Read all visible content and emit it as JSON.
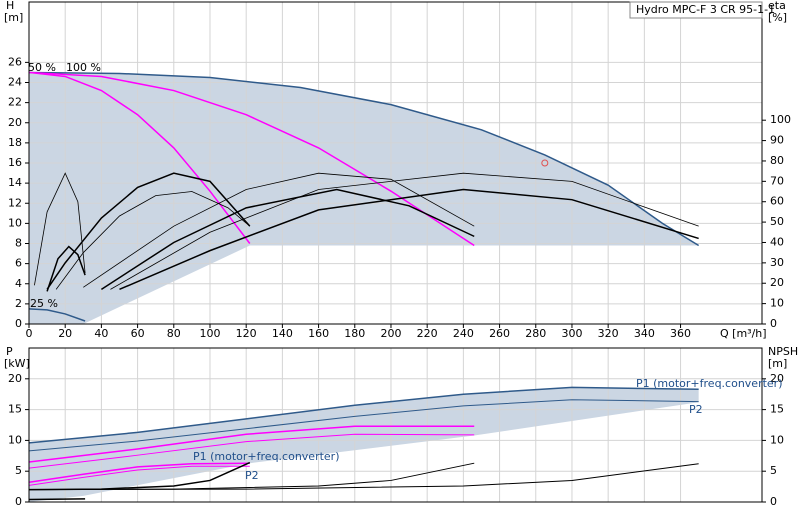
{
  "chart_data": [
    {
      "type": "line",
      "title": "Hydro MPC-F 3 CR 95-1-1",
      "ylabel": "H",
      "ylabel_unit": "[m]",
      "y2label": "eta",
      "y2label_unit": "[%]",
      "xlabel": "Q [m³/h]",
      "xlim": [
        0,
        405
      ],
      "xticks": [
        0,
        20,
        40,
        60,
        80,
        100,
        120,
        140,
        160,
        180,
        200,
        220,
        240,
        260,
        280,
        300,
        320,
        340,
        360
      ],
      "ylim": [
        0,
        32
      ],
      "yticks": [
        0,
        2,
        4,
        6,
        8,
        10,
        12,
        14,
        16,
        18,
        20,
        22,
        24,
        26
      ],
      "y2lim": [
        0,
        158
      ],
      "y2ticks": [
        0,
        10,
        20,
        30,
        40,
        50,
        60,
        70,
        80,
        90,
        100
      ],
      "grid": true,
      "annotations": [
        "50 %",
        "100 %",
        "25 %"
      ],
      "areas": [
        {
          "color": "#cbd6e3",
          "x": [
            0,
            50,
            100,
            150,
            200,
            250,
            285,
            320,
            350,
            370,
            122,
            30,
            0
          ],
          "values": [
            25,
            24.9,
            24.5,
            23.5,
            21.8,
            19.3,
            16.8,
            13.8,
            10,
            7.8,
            7.8,
            0,
            0
          ]
        }
      ],
      "duty_point": {
        "x": 285,
        "y": 16,
        "color": "#e05050"
      },
      "series": [
        {
          "color": "#2f5a8a",
          "line_width": 1.5,
          "x": [
            0,
            50,
            100,
            150,
            200,
            250,
            285,
            320,
            350,
            370
          ],
          "values": [
            25,
            24.9,
            24.5,
            23.5,
            21.8,
            19.3,
            16.8,
            13.8,
            10,
            7.8
          ]
        },
        {
          "color": "#ff00ff",
          "line_width": 1.5,
          "x": [
            0,
            20,
            40,
            60,
            80,
            100,
            122
          ],
          "values": [
            25,
            24.6,
            23.2,
            20.8,
            17.5,
            13.2,
            8
          ]
        },
        {
          "color": "#ff00ff",
          "line_width": 1.5,
          "x": [
            0,
            40,
            80,
            120,
            160,
            200,
            246
          ],
          "values": [
            25,
            24.6,
            23.2,
            20.8,
            17.5,
            13.2,
            7.8
          ]
        },
        {
          "color": "#000",
          "line_width": 1.5,
          "axis": "y2",
          "x": [
            10,
            20,
            40,
            60,
            80,
            100,
            122
          ],
          "values": [
            17,
            30,
            52,
            67,
            74,
            70,
            48
          ]
        },
        {
          "color": "#000",
          "line_width": 0.8,
          "axis": "y2",
          "x": [
            15,
            30,
            50,
            70,
            90,
            110,
            122
          ],
          "values": [
            17,
            35,
            53,
            63,
            65,
            57,
            48
          ]
        },
        {
          "color": "#000",
          "line_width": 0.8,
          "axis": "y2",
          "x": [
            30,
            80,
            120,
            160,
            200,
            246
          ],
          "values": [
            18,
            48,
            66,
            74,
            71,
            48
          ]
        },
        {
          "color": "#000",
          "line_width": 1.5,
          "axis": "y2",
          "x": [
            40,
            80,
            120,
            170,
            210,
            246
          ],
          "values": [
            17,
            40,
            57,
            66,
            58,
            43
          ]
        },
        {
          "color": "#000",
          "line_width": 0.8,
          "axis": "y2",
          "x": [
            45,
            100,
            160,
            240,
            300,
            370
          ],
          "values": [
            17,
            45,
            66,
            74,
            70,
            48
          ]
        },
        {
          "color": "#000",
          "line_width": 1.5,
          "axis": "y2",
          "x": [
            50,
            100,
            160,
            240,
            300,
            370
          ],
          "values": [
            17,
            36,
            56,
            66,
            61,
            42
          ]
        },
        {
          "color": "#000",
          "line_width": 0.8,
          "axis": "y2",
          "x": [
            3,
            10,
            20,
            27,
            31
          ],
          "values": [
            19,
            55,
            74,
            60,
            25
          ]
        },
        {
          "color": "#000",
          "line_width": 1.5,
          "axis": "y2",
          "x": [
            10,
            16,
            22,
            27,
            31
          ],
          "values": [
            16,
            32,
            38,
            34,
            24
          ]
        },
        {
          "color": "#2f5a8a",
          "line_width": 1.5,
          "x": [
            0,
            10,
            20,
            31
          ],
          "values": [
            1.5,
            1.4,
            1,
            0.3
          ]
        }
      ]
    },
    {
      "type": "line",
      "ylabel": "P",
      "ylabel_unit": "[kW]",
      "y2label": "NPSH",
      "y2label_unit": "[m]",
      "xlim": [
        0,
        405
      ],
      "ylim": [
        0,
        25
      ],
      "yticks": [
        0,
        5,
        10,
        15,
        20
      ],
      "y2lim": [
        0,
        25
      ],
      "y2ticks": [
        0,
        5,
        10,
        15,
        20
      ],
      "grid": true,
      "annotations": [
        "P1 (motor+freq.converter)",
        "P2",
        "P1 (motor+freq.converter)",
        "P2"
      ],
      "areas": [
        {
          "color": "#cbd6e3",
          "x": [
            0,
            60,
            120,
            180,
            240,
            300,
            370,
            370,
            246,
            122,
            30,
            0
          ],
          "values": [
            9.6,
            11.3,
            13.5,
            15.7,
            17.5,
            18.6,
            18.3,
            16.2,
            10.8,
            6.3,
            1,
            0
          ]
        }
      ],
      "series": [
        {
          "color": "#2f5a8a",
          "line_width": 1.5,
          "x": [
            0,
            60,
            120,
            180,
            240,
            300,
            370
          ],
          "values": [
            9.6,
            11.3,
            13.5,
            15.7,
            17.5,
            18.6,
            18.3
          ]
        },
        {
          "color": "#2f5a8a",
          "line_width": 1,
          "x": [
            0,
            60,
            120,
            180,
            240,
            300,
            370
          ],
          "values": [
            8.3,
            9.9,
            11.9,
            13.9,
            15.6,
            16.6,
            16.3
          ]
        },
        {
          "color": "#ff00ff",
          "line_width": 1.5,
          "x": [
            0,
            60,
            120,
            180,
            246
          ],
          "values": [
            6.5,
            8.6,
            11,
            12.3,
            12.3
          ]
        },
        {
          "color": "#ff00ff",
          "line_width": 1,
          "x": [
            0,
            60,
            120,
            180,
            246
          ],
          "values": [
            5.5,
            7.6,
            9.8,
            11,
            10.9
          ]
        },
        {
          "color": "#ff00ff",
          "line_width": 1.5,
          "x": [
            0,
            30,
            60,
            90,
            122
          ],
          "values": [
            3.2,
            4.5,
            5.7,
            6.2,
            6.3
          ]
        },
        {
          "color": "#ff00ff",
          "line_width": 1,
          "x": [
            0,
            30,
            60,
            90,
            122
          ],
          "values": [
            2.7,
            4,
            5.2,
            5.8,
            5.8
          ]
        },
        {
          "color": "#000",
          "line_width": 1.5,
          "axis": "y2",
          "x": [
            0,
            40,
            80,
            100,
            122
          ],
          "values": [
            2,
            2.1,
            2.6,
            3.5,
            6.4
          ]
        },
        {
          "color": "#000",
          "line_width": 1,
          "axis": "y2",
          "x": [
            0,
            80,
            160,
            200,
            246
          ],
          "values": [
            2,
            2.1,
            2.6,
            3.5,
            6.3
          ]
        },
        {
          "color": "#000",
          "line_width": 1,
          "axis": "y2",
          "x": [
            0,
            120,
            240,
            300,
            370
          ],
          "values": [
            2,
            2.1,
            2.6,
            3.5,
            6.2
          ]
        },
        {
          "color": "#000",
          "line_width": 1.5,
          "x": [
            0,
            31
          ],
          "values": [
            0.4,
            0.5
          ]
        }
      ]
    }
  ]
}
